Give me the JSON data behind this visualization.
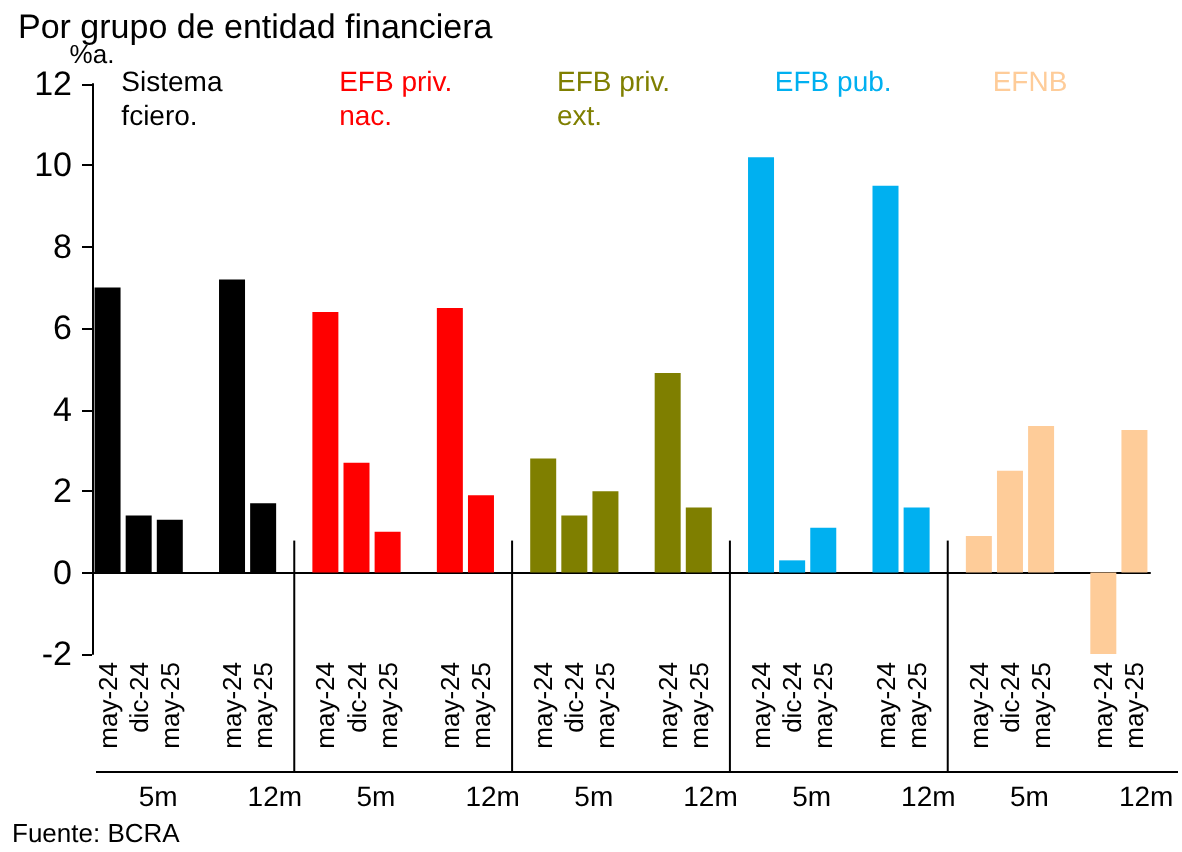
{
  "chart_data": {
    "type": "bar",
    "title": "Por grupo de entidad financiera",
    "ylabel": "%a.",
    "categories": [
      "may-24",
      "dic-24",
      "may-25",
      null,
      "may-24",
      "may-25",
      null,
      "may-24",
      "dic-24",
      "may-25",
      null,
      "may-24",
      "may-25",
      null,
      "may-24",
      "dic-24",
      "may-25",
      null,
      "may-24",
      "may-25",
      null,
      "may-24",
      "dic-24",
      "may-25",
      null,
      "may-24",
      "may-25",
      null,
      "may-24",
      "dic-24",
      "may-25",
      null,
      "may-24",
      "may-25"
    ],
    "series": [
      {
        "name": "Sistema fciero.",
        "color": "#000000",
        "values": [
          7.0,
          1.4,
          1.3,
          null,
          7.2,
          1.7,
          null,
          null,
          null,
          null,
          null,
          null,
          null,
          null,
          null,
          null,
          null,
          null,
          null,
          null,
          null,
          null,
          null,
          null,
          null,
          null,
          null,
          null,
          null,
          null,
          null,
          null,
          null,
          null
        ]
      },
      {
        "name": "EFB priv. nac.",
        "color": "#ff0000",
        "values": [
          null,
          null,
          null,
          null,
          null,
          null,
          null,
          6.4,
          2.7,
          1.0,
          null,
          6.5,
          1.9,
          null,
          null,
          null,
          null,
          null,
          null,
          null,
          null,
          null,
          null,
          null,
          null,
          null,
          null,
          null,
          null,
          null,
          null,
          null,
          null,
          null
        ]
      },
      {
        "name": "EFB priv. ext.",
        "color": "#7f7f00",
        "values": [
          null,
          null,
          null,
          null,
          null,
          null,
          null,
          null,
          null,
          null,
          null,
          null,
          null,
          null,
          2.8,
          1.4,
          2.0,
          null,
          4.9,
          1.6,
          null,
          null,
          null,
          null,
          null,
          null,
          null,
          null,
          null,
          null,
          null,
          null,
          null,
          null
        ]
      },
      {
        "name": "EFB pub.",
        "color": "#00b0f0",
        "values": [
          null,
          null,
          null,
          null,
          null,
          null,
          null,
          null,
          null,
          null,
          null,
          null,
          null,
          null,
          null,
          null,
          null,
          null,
          null,
          null,
          null,
          10.2,
          0.3,
          1.1,
          null,
          9.5,
          1.6,
          null,
          null,
          null,
          null,
          null,
          null,
          null
        ]
      },
      {
        "name": "EFNB",
        "color": "#fecc99",
        "values": [
          null,
          null,
          null,
          null,
          null,
          null,
          null,
          null,
          null,
          null,
          null,
          null,
          null,
          null,
          null,
          null,
          null,
          null,
          null,
          null,
          null,
          null,
          null,
          null,
          null,
          null,
          null,
          null,
          0.9,
          2.5,
          3.6,
          null,
          -2.0,
          3.5
        ]
      }
    ],
    "ylim": [
      -2,
      12
    ],
    "yticks": [
      -2,
      0,
      2,
      4,
      6,
      8,
      10,
      12
    ],
    "legend": false,
    "annotations": [
      "Fuente: BCRA",
      "5m",
      "12m",
      "5m",
      "12m",
      "5m",
      "12m",
      "5m",
      "12m",
      "5m",
      "12m"
    ]
  }
}
